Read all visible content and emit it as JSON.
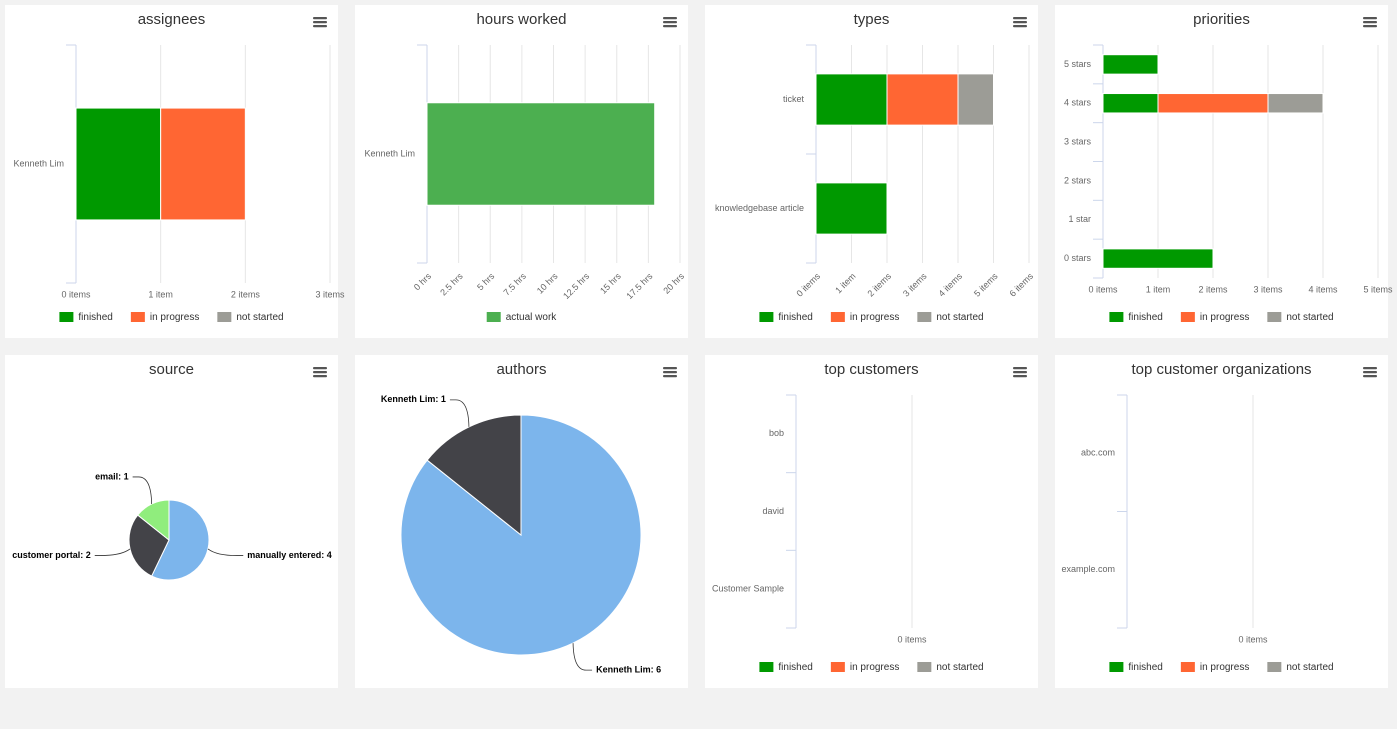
{
  "chart_data": [
    {
      "type": "bar",
      "title": "assignees",
      "categories": [
        "Kenneth Lim"
      ],
      "series": [
        {
          "name": "finished",
          "color": "#009900",
          "values": [
            1
          ]
        },
        {
          "name": "in progress",
          "color": "#ff6633",
          "values": [
            1
          ]
        },
        {
          "name": "not started",
          "color": "#9c9c96",
          "values": [
            0
          ]
        }
      ],
      "xlim": [
        0,
        3
      ],
      "xticks": [
        {
          "value": 0,
          "label": "0 items"
        },
        {
          "value": 1,
          "label": "1 item"
        },
        {
          "value": 2,
          "label": "2 items"
        },
        {
          "value": 3,
          "label": "3 items"
        }
      ],
      "grid": true
    },
    {
      "type": "bar",
      "title": "hours worked",
      "categories": [
        "Kenneth Lim"
      ],
      "series": [
        {
          "name": "actual work",
          "color": "#4caf50",
          "values": [
            18
          ]
        }
      ],
      "xlim": [
        0,
        20
      ],
      "xticks": [
        {
          "value": 0,
          "label": "0 hrs"
        },
        {
          "value": 2.5,
          "label": "2.5 hrs"
        },
        {
          "value": 5,
          "label": "5 hrs"
        },
        {
          "value": 7.5,
          "label": "7.5 hrs"
        },
        {
          "value": 10,
          "label": "10 hrs"
        },
        {
          "value": 12.5,
          "label": "12.5 hrs"
        },
        {
          "value": 15,
          "label": "15 hrs"
        },
        {
          "value": 17.5,
          "label": "17.5 hrs"
        },
        {
          "value": 20,
          "label": "20 hrs"
        }
      ],
      "grid": true
    },
    {
      "type": "bar",
      "title": "types",
      "categories": [
        "ticket",
        "knowledgebase article"
      ],
      "series": [
        {
          "name": "finished",
          "color": "#009900",
          "values": [
            2,
            2
          ]
        },
        {
          "name": "in progress",
          "color": "#ff6633",
          "values": [
            2,
            0
          ]
        },
        {
          "name": "not started",
          "color": "#9c9c96",
          "values": [
            1,
            0
          ]
        }
      ],
      "xlim": [
        0,
        6
      ],
      "xticks": [
        {
          "value": 0,
          "label": "0 items"
        },
        {
          "value": 1,
          "label": "1 item"
        },
        {
          "value": 2,
          "label": "2 items"
        },
        {
          "value": 3,
          "label": "3 items"
        },
        {
          "value": 4,
          "label": "4 items"
        },
        {
          "value": 5,
          "label": "5 items"
        },
        {
          "value": 6,
          "label": "6 items"
        }
      ],
      "grid": true
    },
    {
      "type": "bar",
      "title": "priorities",
      "categories": [
        "5 stars",
        "4 stars",
        "3 stars",
        "2 stars",
        "1 star",
        "0 stars"
      ],
      "series": [
        {
          "name": "finished",
          "color": "#009900",
          "values": [
            1,
            1,
            0,
            0,
            0,
            2
          ]
        },
        {
          "name": "in progress",
          "color": "#ff6633",
          "values": [
            0,
            2,
            0,
            0,
            0,
            0
          ]
        },
        {
          "name": "not started",
          "color": "#9c9c96",
          "values": [
            0,
            1,
            0,
            0,
            0,
            0
          ]
        }
      ],
      "xlim": [
        0,
        5
      ],
      "xticks": [
        {
          "value": 0,
          "label": "0 items"
        },
        {
          "value": 1,
          "label": "1 item"
        },
        {
          "value": 2,
          "label": "2 items"
        },
        {
          "value": 3,
          "label": "3 items"
        },
        {
          "value": 4,
          "label": "4 items"
        },
        {
          "value": 5,
          "label": "5 items"
        }
      ],
      "grid": true
    },
    {
      "type": "pie",
      "title": "source",
      "values": [
        4,
        2,
        1
      ],
      "value_labels": [
        "manually entered: 4",
        "customer portal: 2",
        "email: 1"
      ],
      "colors": [
        "#7cb5ec",
        "#434348",
        "#90ed7d"
      ]
    },
    {
      "type": "pie",
      "title": "authors",
      "values": [
        6,
        1
      ],
      "value_labels": [
        "Kenneth Lim: 6",
        "Kenneth Lim: 1"
      ],
      "colors": [
        "#7cb5ec",
        "#434348"
      ]
    },
    {
      "type": "bar",
      "title": "top customers",
      "categories": [
        "bob",
        "david",
        "Customer Sample"
      ],
      "series": [
        {
          "name": "finished",
          "color": "#009900",
          "values": [
            0,
            0,
            0
          ]
        },
        {
          "name": "in progress",
          "color": "#ff6633",
          "values": [
            0,
            0,
            0
          ]
        },
        {
          "name": "not started",
          "color": "#9c9c96",
          "values": [
            0,
            0,
            0
          ]
        }
      ],
      "xlim": [
        -1,
        1
      ],
      "xticks": [
        {
          "value": 0,
          "label": "0 items"
        }
      ],
      "grid": true
    },
    {
      "type": "bar",
      "title": "top customer organizations",
      "categories": [
        "abc.com",
        "example.com"
      ],
      "series": [
        {
          "name": "finished",
          "color": "#009900",
          "values": [
            0,
            0
          ]
        },
        {
          "name": "in progress",
          "color": "#ff6633",
          "values": [
            0,
            0
          ]
        },
        {
          "name": "not started",
          "color": "#9c9c96",
          "values": [
            0,
            0
          ]
        }
      ],
      "xlim": [
        -1,
        1
      ],
      "xticks": [
        {
          "value": 0,
          "label": "0 items"
        }
      ],
      "grid": true
    }
  ]
}
